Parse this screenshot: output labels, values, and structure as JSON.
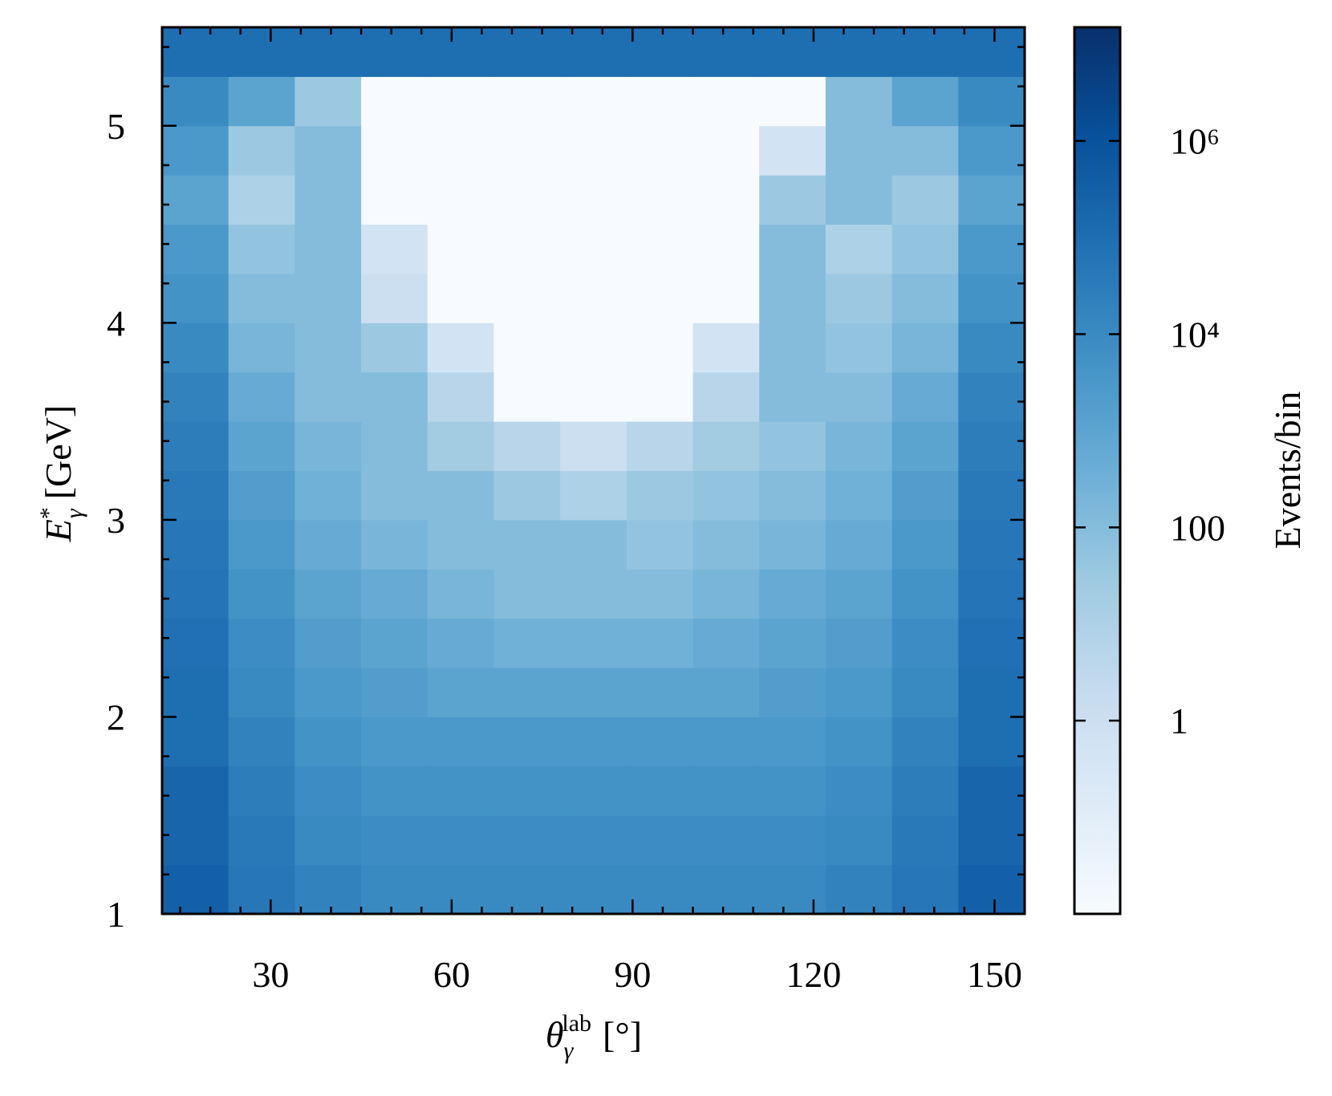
{
  "chart_data": {
    "type": "heatmap",
    "xlabel": {
      "symbol": "θ",
      "sub": "γ",
      "sup": "lab",
      "unit": "[°]"
    },
    "ylabel": {
      "symbol": "E",
      "sup": "*",
      "sub": "γ",
      "unit": "[GeV]"
    },
    "colorbar_label": "Events/bin",
    "cmap": "Blues",
    "log_color": true,
    "clim": [
      0.01,
      15000000
    ],
    "cticks": [
      {
        "value": 1,
        "label": "1"
      },
      {
        "value": 100,
        "label": "100"
      },
      {
        "value": 10000,
        "label": "10⁴"
      },
      {
        "value": 1000000,
        "label": "10⁶"
      }
    ],
    "xlim": [
      12,
      155
    ],
    "ylim": [
      1,
      5.5
    ],
    "xticks": [
      30,
      60,
      90,
      120,
      150
    ],
    "yticks": [
      1,
      2,
      3,
      4,
      5
    ],
    "xminorticks": [
      15,
      20,
      25,
      35,
      40,
      45,
      50,
      55,
      65,
      70,
      75,
      80,
      85,
      95,
      100,
      105,
      110,
      115,
      125,
      130,
      135,
      140,
      145,
      155
    ],
    "yminorticks": [
      1.2,
      1.4,
      1.6,
      1.8,
      2.2,
      2.4,
      2.6,
      2.8,
      3.2,
      3.4,
      3.6,
      3.8,
      4.2,
      4.4,
      4.6,
      4.8,
      5.2,
      5.4
    ],
    "x_edges": [
      12,
      23,
      34,
      45,
      56,
      67,
      78,
      89,
      100,
      111,
      122,
      133,
      144,
      155
    ],
    "y_edges": [
      1,
      1.25,
      1.5,
      1.75,
      2,
      2.25,
      2.5,
      2.75,
      3,
      3.25,
      3.5,
      3.75,
      4,
      4.25,
      4.5,
      4.75,
      5,
      5.25,
      5.5
    ],
    "z": [
      [
        300000.0,
        50000.0,
        20000.0,
        10000.0,
        10000.0,
        10000.0,
        10000.0,
        10000.0,
        10000.0,
        10000.0,
        20000.0,
        50000.0,
        300000.0
      ],
      [
        200000.0,
        40000.0,
        10000.0,
        8000,
        8000,
        8000,
        8000,
        8000,
        8000,
        8000,
        10000.0,
        40000.0,
        200000.0
      ],
      [
        200000.0,
        30000.0,
        8000,
        5000,
        5000,
        5000,
        5000,
        5000,
        5000,
        5000,
        8000,
        30000.0,
        200000.0
      ],
      [
        100000.0,
        20000.0,
        5000,
        3000,
        3000,
        3000,
        3000,
        3000,
        3000,
        3000,
        5000,
        20000.0,
        100000.0
      ],
      [
        100000.0,
        10000.0,
        3000,
        2000,
        1000,
        1000,
        1000,
        1000,
        1000,
        2000,
        3000,
        10000.0,
        100000.0
      ],
      [
        80000.0,
        8000,
        2000,
        1000,
        500,
        300,
        300,
        300,
        500,
        1000,
        2000,
        8000,
        80000.0
      ],
      [
        60000.0,
        5000,
        1000,
        500,
        200,
        100,
        100,
        100,
        200,
        500,
        1000,
        5000,
        60000.0
      ],
      [
        50000.0,
        3000,
        500,
        200,
        100,
        100,
        100,
        50,
        100,
        200,
        500,
        3000,
        50000.0
      ],
      [
        40000.0,
        2000,
        300,
        100,
        100,
        30,
        10,
        30,
        50,
        100,
        300,
        2000,
        40000.0
      ],
      [
        30000.0,
        1000,
        200,
        100,
        20,
        5,
        1,
        5,
        20,
        50,
        200,
        1000,
        30000.0
      ],
      [
        20000.0,
        500,
        100,
        100,
        5,
        0.01,
        0.01,
        0.01,
        5,
        100,
        100,
        500,
        20000.0
      ],
      [
        10000.0,
        200,
        100,
        30,
        0.5,
        0.01,
        0.01,
        0.01,
        0.5,
        100,
        50,
        200,
        10000.0
      ],
      [
        5000,
        100,
        100,
        1,
        0.01,
        0.01,
        0.01,
        0.01,
        0.01,
        100,
        30,
        100,
        5000
      ],
      [
        3000,
        50,
        100,
        0.5,
        0.01,
        0.01,
        0.01,
        0.01,
        0.01,
        100,
        10,
        50,
        3000
      ],
      [
        1000,
        10,
        100,
        0.01,
        0.01,
        0.01,
        0.01,
        0.01,
        0.01,
        30,
        100,
        30,
        1000
      ],
      [
        3000,
        30,
        100,
        0.01,
        0.01,
        0.01,
        0.01,
        0.01,
        0.01,
        0.5,
        100,
        100,
        3000
      ],
      [
        10000.0,
        1000,
        30,
        0.01,
        0.01,
        0.01,
        0.01,
        0.01,
        0.01,
        0.01,
        100,
        1000,
        10000.0
      ],
      [
        100000.0,
        100000.0,
        100000.0,
        100000.0,
        100000.0,
        100000.0,
        100000.0,
        100000.0,
        100000.0,
        100000.0,
        100000.0,
        100000.0,
        100000.0
      ]
    ]
  }
}
